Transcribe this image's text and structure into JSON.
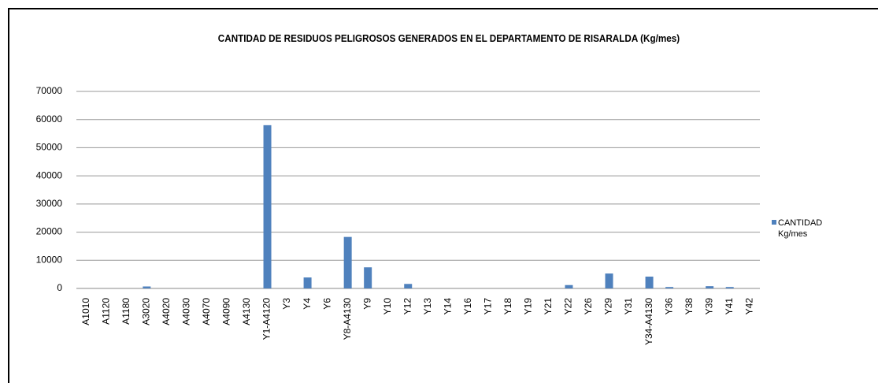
{
  "chart_data": {
    "type": "bar",
    "title": "CANTIDAD DE RESIDUOS PELIGROSOS GENERADOS EN EL DEPARTAMENTO DE RISARALDA (Kg/mes)",
    "categories": [
      "A1010",
      "A1120",
      "A1180",
      "A3020",
      "A4020",
      "A4030",
      "A4070",
      "A4090",
      "A4130",
      "Y1-A4120",
      "Y3",
      "Y4",
      "Y6",
      "Y8-A4130",
      "Y9",
      "Y10",
      "Y12",
      "Y13",
      "Y14",
      "Y16",
      "Y17",
      "Y18",
      "Y19",
      "Y21",
      "Y22",
      "Y26",
      "Y29",
      "Y31",
      "Y34-A4130",
      "Y36",
      "Y38",
      "Y39",
      "Y41",
      "Y42"
    ],
    "series": [
      {
        "name": "CANTIDAD Kg/mes",
        "color": "#4f81bd",
        "values": [
          0,
          0,
          0,
          700,
          0,
          0,
          0,
          0,
          0,
          58000,
          0,
          3900,
          0,
          18300,
          7500,
          0,
          1600,
          0,
          0,
          0,
          0,
          0,
          0,
          0,
          1200,
          0,
          5300,
          0,
          4200,
          500,
          0,
          800,
          500,
          0
        ]
      }
    ],
    "ylim": [
      0,
      70000
    ],
    "yticks": [
      0,
      10000,
      20000,
      30000,
      40000,
      50000,
      60000,
      70000
    ],
    "grid": true,
    "legend": "right"
  }
}
